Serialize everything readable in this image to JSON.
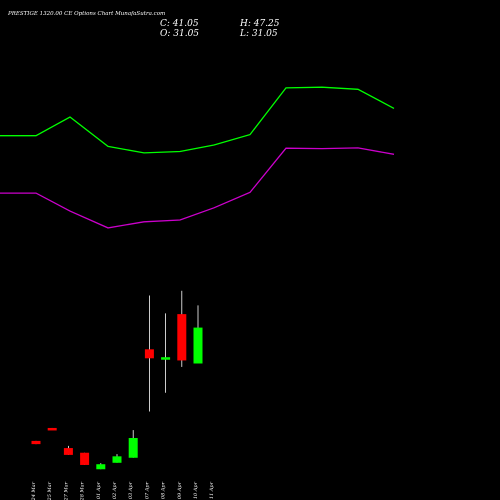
{
  "header": {
    "title": "PRESTIGE 1320.00 CE Options Chart MunafaSutra.com",
    "close_text": "C: 41.05",
    "open_text": "O: 31.05",
    "high_text": "H: 47.25",
    "low_text": "L: 31.05"
  },
  "colors": {
    "background": "#000000",
    "up": "#00ff00",
    "down": "#ff0000",
    "upper_band": "#00ff00",
    "lower_band": "#cc00cc",
    "text": "#ffffff"
  },
  "chart_data": {
    "type": "candlestick",
    "title": "PRESTIGE 1320.00 CE Options Chart MunafaSutra.com",
    "categories": [
      "24 Mar",
      "25 Mar",
      "27 Mar",
      "28 Mar",
      "01 Apr",
      "02 Apr",
      "03 Apr",
      "07 Apr",
      "08 Apr",
      "09 Apr",
      "10 Apr",
      "11 Apr"
    ],
    "candles": [
      {
        "date": "24 Mar",
        "open": 9.5,
        "high": 9.5,
        "low": 8.6,
        "close": 8.6
      },
      {
        "date": "25 Mar",
        "open": 13.1,
        "high": 13.1,
        "low": 12.9,
        "close": 12.9
      },
      {
        "date": "27 Mar",
        "open": 7.5,
        "high": 8.1,
        "low": 5.6,
        "close": 5.6
      },
      {
        "date": "28 Mar",
        "open": 6.2,
        "high": 6.2,
        "low": 2.8,
        "close": 2.8
      },
      {
        "date": "01 Apr",
        "open": 1.6,
        "high": 3.3,
        "low": 1.6,
        "close": 3.0
      },
      {
        "date": "02 Apr",
        "open": 3.4,
        "high": 5.8,
        "low": 3.4,
        "close": 5.2
      },
      {
        "date": "03 Apr",
        "open": 4.8,
        "high": 12.5,
        "low": 4.8,
        "close": 10.3
      },
      {
        "date": "07 Apr",
        "open": 35.0,
        "high": 50.0,
        "low": 17.7,
        "close": 32.5
      },
      {
        "date": "08 Apr",
        "open": 32.5,
        "high": 45.0,
        "low": 22.9,
        "close": 32.8
      },
      {
        "date": "09 Apr",
        "open": 44.8,
        "high": 51.3,
        "low": 30.1,
        "close": 31.9
      },
      {
        "date": "10 Apr",
        "open": 31.05,
        "high": 47.25,
        "low": 31.05,
        "close": 41.05
      }
    ],
    "upper_band": [
      94.5,
      94.5,
      99.7,
      91.5,
      89.7,
      90.1,
      91.9,
      94.8,
      107.8,
      108.0,
      107.4,
      102.1
    ],
    "lower_band": [
      78.5,
      78.5,
      73.5,
      68.8,
      70.5,
      71.0,
      74.4,
      78.7,
      91.0,
      90.9,
      91.1,
      89.3
    ],
    "ylim": [
      0,
      110
    ]
  }
}
